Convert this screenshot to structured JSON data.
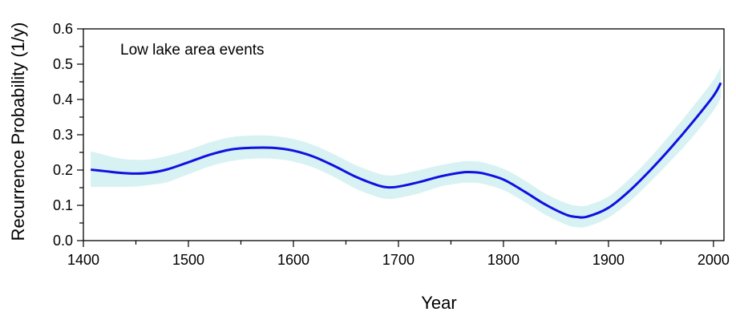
{
  "chart_data": {
    "type": "line",
    "title": "",
    "annotation": "Low lake area events",
    "xlabel": "Year",
    "ylabel": "Recurrence Probability (1/y)",
    "xlim": [
      1400,
      2010
    ],
    "ylim": [
      0.0,
      0.6
    ],
    "x_ticks": [
      1400,
      1500,
      1600,
      1700,
      1800,
      1900,
      2000
    ],
    "y_ticks": [
      0.0,
      0.1,
      0.2,
      0.3,
      0.4,
      0.5,
      0.6
    ],
    "y_tick_labels": [
      "0.0",
      "0.1",
      "0.2",
      "0.3",
      "0.4",
      "0.5",
      "0.6"
    ],
    "grid": false,
    "legend": "none",
    "series": [
      {
        "x": [
          1407,
          1420,
          1435,
          1450,
          1465,
          1480,
          1500,
          1520,
          1540,
          1560,
          1580,
          1600,
          1620,
          1640,
          1660,
          1680,
          1690,
          1700,
          1720,
          1740,
          1760,
          1770,
          1780,
          1800,
          1820,
          1840,
          1860,
          1870,
          1880,
          1900,
          1920,
          1940,
          1960,
          1980,
          2000,
          2007
        ],
        "y": [
          0.201,
          0.197,
          0.192,
          0.19,
          0.193,
          0.202,
          0.222,
          0.243,
          0.258,
          0.263,
          0.263,
          0.255,
          0.237,
          0.21,
          0.18,
          0.157,
          0.151,
          0.153,
          0.166,
          0.182,
          0.193,
          0.194,
          0.191,
          0.173,
          0.139,
          0.102,
          0.073,
          0.067,
          0.068,
          0.093,
          0.141,
          0.2,
          0.265,
          0.335,
          0.41,
          0.447
        ],
        "lower": [
          0.152,
          0.152,
          0.152,
          0.153,
          0.158,
          0.166,
          0.188,
          0.21,
          0.225,
          0.232,
          0.232,
          0.224,
          0.206,
          0.178,
          0.146,
          0.124,
          0.118,
          0.121,
          0.134,
          0.153,
          0.163,
          0.164,
          0.161,
          0.143,
          0.11,
          0.073,
          0.045,
          0.038,
          0.04,
          0.065,
          0.11,
          0.167,
          0.228,
          0.293,
          0.368,
          0.403
        ],
        "upper": [
          0.253,
          0.243,
          0.233,
          0.229,
          0.231,
          0.24,
          0.257,
          0.278,
          0.293,
          0.298,
          0.297,
          0.288,
          0.27,
          0.243,
          0.213,
          0.191,
          0.185,
          0.187,
          0.2,
          0.214,
          0.224,
          0.225,
          0.222,
          0.204,
          0.171,
          0.133,
          0.106,
          0.099,
          0.1,
          0.125,
          0.175,
          0.236,
          0.305,
          0.378,
          0.455,
          0.493
        ],
        "line_color": "#1010e0",
        "band_color": "#d8f2f4"
      }
    ]
  }
}
